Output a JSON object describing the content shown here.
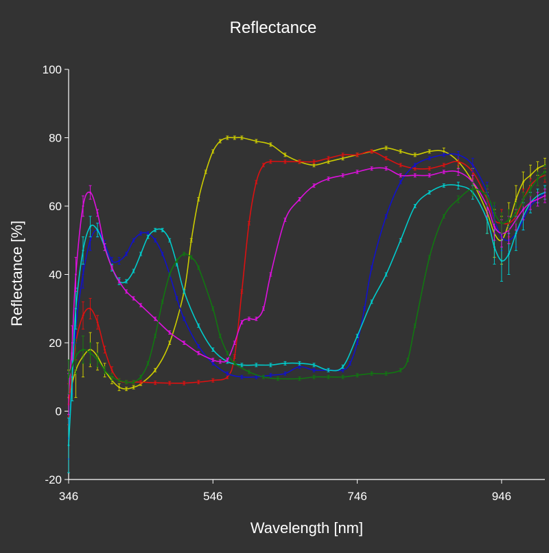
{
  "chart_data": {
    "type": "line",
    "title": "Reflectance",
    "xlabel": "Wavelength [nm]",
    "ylabel": "Reflectance [%]",
    "xlim": [
      346,
      1006
    ],
    "ylim": [
      -20,
      100
    ],
    "xticks": [
      346,
      546,
      746,
      946
    ],
    "yticks": [
      100,
      80,
      60,
      40,
      20,
      0,
      -20
    ],
    "grid": false,
    "legend": "none",
    "background": "#333333",
    "axis_color": "#ffffff",
    "error_bars": true,
    "series": [
      {
        "color": "#cccc00",
        "x": [
          346,
          356,
          366,
          376,
          386,
          396,
          406,
          416,
          426,
          436,
          446,
          466,
          486,
          506,
          516,
          526,
          536,
          546,
          556,
          566,
          576,
          586,
          606,
          626,
          646,
          666,
          686,
          706,
          726,
          746,
          766,
          786,
          806,
          826,
          846,
          866,
          886,
          906,
          926,
          936,
          946,
          956,
          966,
          976,
          986,
          996,
          1006
        ],
        "y": [
          4,
          12,
          16,
          18,
          16,
          12,
          9,
          7,
          6.5,
          7,
          8,
          12,
          20,
          35,
          50,
          62,
          70,
          76,
          79,
          80,
          80,
          80,
          79,
          78,
          75,
          73,
          72,
          73,
          74,
          75,
          76,
          77,
          76,
          75,
          76,
          76,
          73,
          67,
          58,
          52,
          50,
          55,
          62,
          67,
          69,
          71,
          72
        ],
        "err": [
          8,
          8,
          6,
          5,
          4,
          2,
          1,
          1,
          0.5,
          0.5,
          0.5,
          0.5,
          0.5,
          0.5,
          0.5,
          0.5,
          0.5,
          0.5,
          0.5,
          0.5,
          0.5,
          0.5,
          0.5,
          0.5,
          0.5,
          0.5,
          0.5,
          0.5,
          0.5,
          0.5,
          0.5,
          0.5,
          0.5,
          0.5,
          0.5,
          1,
          2,
          4,
          6,
          7,
          7,
          6,
          4,
          3,
          3,
          2,
          2
        ]
      },
      {
        "color": "#dd1111",
        "x": [
          346,
          356,
          366,
          376,
          386,
          396,
          406,
          416,
          426,
          436,
          446,
          466,
          486,
          506,
          526,
          546,
          566,
          576,
          586,
          596,
          606,
          616,
          626,
          646,
          666,
          686,
          706,
          726,
          746,
          766,
          786,
          806,
          826,
          846,
          866,
          886,
          906,
          926,
          936,
          946,
          956,
          966,
          976,
          986,
          996,
          1006
        ],
        "y": [
          2,
          20,
          28,
          30,
          26,
          18,
          12,
          9,
          8.5,
          8.5,
          8.5,
          8.3,
          8.2,
          8.2,
          8.5,
          9,
          10,
          16,
          35,
          55,
          67,
          72,
          73,
          73,
          73,
          73,
          74,
          75,
          75,
          76,
          74,
          72,
          71,
          71,
          72,
          73,
          70,
          62,
          56,
          55,
          55,
          57,
          62,
          66,
          68,
          69
        ],
        "err": [
          6,
          5,
          4,
          3,
          2,
          1,
          1,
          0.5,
          0.5,
          0.5,
          0.5,
          0.5,
          0.5,
          0.5,
          0.5,
          0.5,
          0.5,
          0.5,
          0.5,
          0.5,
          0.5,
          0.5,
          0.5,
          0.5,
          0.5,
          0.5,
          0.5,
          0.5,
          0.5,
          0.5,
          0.5,
          0.5,
          0.5,
          0.5,
          0.5,
          1,
          2,
          3,
          4,
          4,
          4,
          4,
          3,
          2,
          2,
          2
        ]
      },
      {
        "color": "#1111cc",
        "x": [
          346,
          351,
          356,
          366,
          376,
          386,
          396,
          406,
          416,
          426,
          436,
          446,
          456,
          466,
          476,
          486,
          496,
          506,
          526,
          546,
          566,
          586,
          606,
          626,
          646,
          666,
          686,
          706,
          726,
          736,
          746,
          756,
          766,
          786,
          806,
          826,
          846,
          866,
          886,
          906,
          926,
          936,
          946,
          956,
          966,
          976,
          986,
          996,
          1006
        ],
        "y": [
          -8,
          10,
          25,
          40,
          50,
          53,
          49,
          44,
          44,
          46,
          50,
          52,
          52,
          50,
          46,
          40,
          33,
          27,
          19,
          14,
          11,
          10,
          10,
          10.5,
          11,
          13,
          12,
          12,
          12,
          14,
          20,
          30,
          42,
          57,
          67,
          72,
          74,
          75,
          75,
          72,
          64,
          56,
          51,
          50,
          52,
          56,
          60,
          62,
          64
        ],
        "err": [
          6,
          5,
          5,
          4,
          3,
          2,
          1,
          1,
          1,
          0.5,
          0.5,
          0.5,
          0.5,
          0.5,
          0.5,
          0.5,
          0.5,
          0.5,
          0.5,
          0.5,
          0.5,
          0.5,
          0.5,
          0.5,
          0.5,
          0.5,
          0.5,
          0.5,
          0.5,
          0.5,
          0.5,
          0.5,
          0.5,
          0.5,
          0.5,
          0.5,
          0.5,
          0.5,
          1,
          2,
          3,
          4,
          4,
          4,
          4,
          3,
          2,
          2,
          2
        ]
      },
      {
        "color": "#00cccc",
        "x": [
          346,
          351,
          356,
          366,
          376,
          386,
          396,
          406,
          416,
          426,
          436,
          446,
          456,
          466,
          476,
          486,
          496,
          506,
          526,
          546,
          566,
          586,
          606,
          626,
          646,
          666,
          686,
          706,
          726,
          746,
          766,
          786,
          806,
          826,
          846,
          866,
          886,
          906,
          926,
          936,
          946,
          956,
          966,
          976,
          986,
          996,
          1006
        ],
        "y": [
          -10,
          10,
          30,
          47,
          54,
          53,
          48,
          42,
          38,
          38,
          41,
          46,
          51,
          53,
          53,
          50,
          43,
          35,
          25,
          18,
          14.5,
          13.5,
          13.5,
          13.5,
          14,
          14,
          13.5,
          12,
          13,
          22,
          32,
          40,
          50,
          60,
          64,
          66,
          66,
          64,
          56,
          48,
          44,
          46,
          52,
          57,
          61,
          63,
          64
        ],
        "err": [
          8,
          7,
          6,
          4,
          3,
          2,
          1,
          1,
          1,
          0.5,
          0.5,
          0.5,
          0.5,
          0.5,
          0.5,
          0.5,
          0.5,
          0.5,
          0.5,
          0.5,
          0.5,
          0.5,
          0.5,
          0.5,
          0.5,
          0.5,
          0.5,
          0.5,
          0.5,
          0.5,
          0.5,
          0.5,
          0.5,
          0.5,
          0.5,
          0.5,
          1,
          2,
          4,
          5,
          6,
          6,
          5,
          4,
          3,
          2,
          2
        ]
      },
      {
        "color": "#dd11dd",
        "x": [
          346,
          351,
          356,
          366,
          376,
          386,
          396,
          406,
          416,
          426,
          436,
          446,
          466,
          486,
          506,
          526,
          546,
          556,
          566,
          576,
          586,
          596,
          606,
          616,
          626,
          646,
          666,
          686,
          706,
          726,
          746,
          766,
          786,
          806,
          826,
          846,
          866,
          886,
          906,
          926,
          936,
          946,
          956,
          966,
          976,
          986,
          996,
          1006
        ],
        "y": [
          5,
          20,
          40,
          60,
          64,
          58,
          48,
          42,
          38,
          35,
          33,
          31,
          27,
          23,
          20,
          17,
          15,
          14.5,
          15,
          20,
          26,
          27,
          27,
          30,
          40,
          56,
          62,
          66,
          68,
          69,
          70,
          71,
          71,
          69,
          69,
          69,
          70,
          70,
          67,
          60,
          54,
          52,
          53,
          56,
          59,
          61,
          62,
          63
        ],
        "err": [
          6,
          5,
          5,
          3,
          2,
          1,
          1,
          0.5,
          0.5,
          0.5,
          0.5,
          0.5,
          0.5,
          0.5,
          0.5,
          0.5,
          0.5,
          0.5,
          0.5,
          0.5,
          0.5,
          0.5,
          0.5,
          0.5,
          0.5,
          0.5,
          0.5,
          0.5,
          0.5,
          0.5,
          0.5,
          0.5,
          0.5,
          0.5,
          0.5,
          0.5,
          0.5,
          1,
          2,
          3,
          4,
          4,
          4,
          3,
          3,
          2,
          2,
          2
        ]
      },
      {
        "color": "#117711",
        "x": [
          346,
          356,
          366,
          376,
          386,
          396,
          406,
          416,
          426,
          436,
          446,
          456,
          466,
          476,
          486,
          496,
          506,
          516,
          526,
          546,
          556,
          566,
          576,
          596,
          616,
          636,
          666,
          686,
          706,
          726,
          746,
          766,
          786,
          806,
          816,
          826,
          846,
          866,
          886,
          906,
          926,
          936,
          946,
          956,
          966,
          976,
          986,
          996,
          1006
        ],
        "y": [
          10,
          16,
          18,
          17,
          15,
          12,
          10,
          9,
          8.5,
          8.5,
          10,
          14,
          22,
          32,
          40,
          44,
          46,
          45,
          42,
          30,
          22,
          17,
          14,
          11.5,
          10,
          9.5,
          9.5,
          10,
          10,
          10,
          10.5,
          11,
          11,
          12,
          15,
          25,
          45,
          57,
          62,
          65,
          63,
          58,
          55,
          56,
          58,
          62,
          65,
          68,
          70
        ],
        "err": [
          5,
          5,
          4,
          3,
          2,
          1,
          1,
          0.5,
          0.5,
          0.5,
          0.5,
          0.5,
          0.5,
          0.5,
          0.5,
          0.5,
          0.5,
          0.5,
          0.5,
          0.5,
          0.5,
          0.5,
          0.5,
          0.5,
          0.5,
          0.5,
          0.5,
          0.5,
          0.5,
          0.5,
          0.5,
          0.5,
          0.5,
          0.5,
          0.5,
          0.5,
          0.5,
          0.5,
          1,
          2,
          3,
          3,
          3,
          3,
          3,
          2,
          2,
          2,
          2
        ]
      }
    ]
  }
}
